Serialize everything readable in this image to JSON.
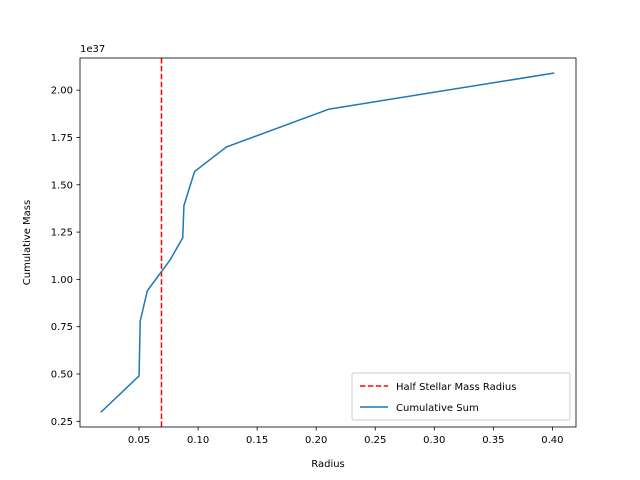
{
  "chart_data": {
    "type": "line",
    "title": "",
    "xlabel": "Radius",
    "ylabel": "Cumulative Mass",
    "y_offset_label": "1e37",
    "xlim": [
      0.0,
      0.42
    ],
    "ylim": [
      0.22,
      2.17
    ],
    "x_ticks": [
      0.05,
      0.1,
      0.15,
      0.2,
      0.25,
      0.3,
      0.35,
      0.4
    ],
    "x_tick_labels": [
      "0.05",
      "0.10",
      "0.15",
      "0.20",
      "0.25",
      "0.30",
      "0.35",
      "0.40"
    ],
    "y_ticks": [
      0.25,
      0.5,
      0.75,
      1.0,
      1.25,
      1.5,
      1.75,
      2.0
    ],
    "y_tick_labels": [
      "0.25",
      "0.50",
      "0.75",
      "1.00",
      "1.25",
      "1.50",
      "1.75",
      "2.00"
    ],
    "grid": false,
    "legend_position": "lower-right",
    "series": [
      {
        "name": "Cumulative Sum",
        "color": "#1f77b4",
        "style": "solid",
        "x": [
          0.018,
          0.05,
          0.051,
          0.057,
          0.076,
          0.087,
          0.088,
          0.097,
          0.124,
          0.211,
          0.401
        ],
        "y": [
          0.3,
          0.49,
          0.78,
          0.94,
          1.1,
          1.22,
          1.39,
          1.57,
          1.7,
          1.9,
          2.09
        ]
      }
    ],
    "reference_lines": [
      {
        "name": "Half Stellar Mass Radius",
        "orientation": "vertical",
        "x": 0.069,
        "color": "#ff0000",
        "style": "dashed"
      }
    ]
  }
}
